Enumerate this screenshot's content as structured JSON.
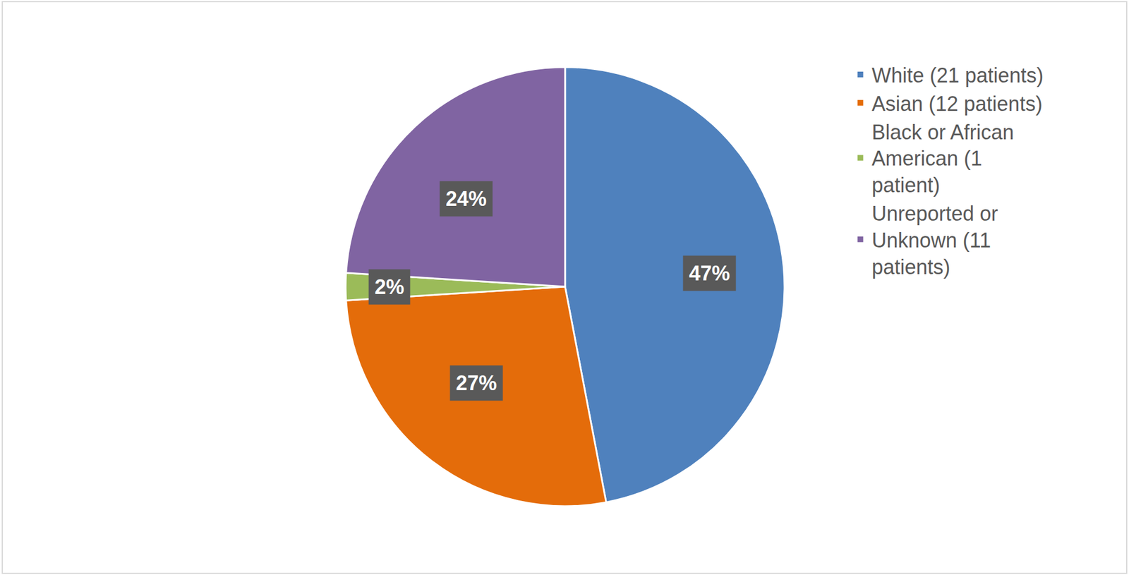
{
  "chart_data": {
    "type": "pie",
    "categories": [
      "White (21 patients)",
      "Asian (12 patients)",
      "Black or African American (1 patient)",
      "Unreported or Unknown (11 patients)"
    ],
    "values": [
      47,
      27,
      2,
      24
    ],
    "value_labels": [
      "47%",
      "27%",
      "2%",
      "24%"
    ],
    "colors": [
      "#4f81bd",
      "#e46c0a",
      "#9bbb59",
      "#8064a2"
    ],
    "data_labels": true,
    "legend": "right"
  }
}
